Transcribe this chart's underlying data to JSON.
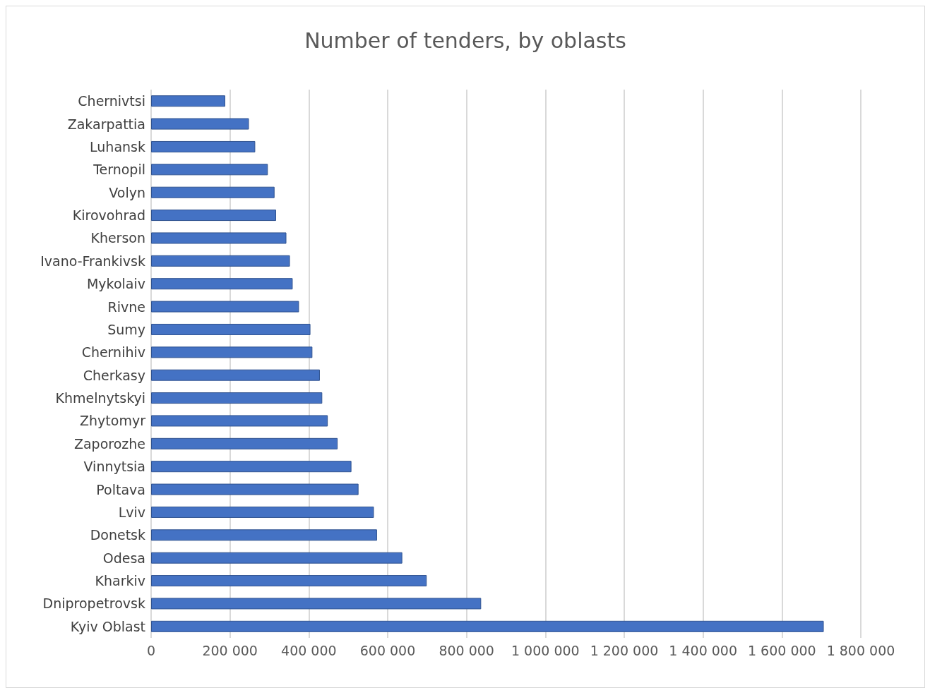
{
  "chart_data": {
    "type": "bar",
    "orientation": "horizontal",
    "title": "Number of tenders, by oblasts",
    "categories": [
      "Chernivtsi",
      "Zakarpattia",
      "Luhansk",
      "Ternopil",
      "Volyn",
      "Kirovohrad",
      "Kherson",
      "Ivano-Frankivsk",
      "Mykolaiv",
      "Rivne",
      "Sumy",
      "Chernihiv",
      "Cherkasy",
      "Khmelnytskyi",
      "Zhytomyr",
      "Zaporozhe",
      "Vinnytsia",
      "Poltava",
      "Lviv",
      "Donetsk",
      "Odesa",
      "Kharkiv",
      "Dnipropetrovsk",
      "Kyiv Oblast"
    ],
    "values": [
      188000,
      248000,
      264000,
      296000,
      313000,
      317000,
      343000,
      352000,
      359000,
      375000,
      404000,
      409000,
      428000,
      434000,
      448000,
      473000,
      508000,
      526000,
      565000,
      573000,
      637000,
      699000,
      837000,
      1706000
    ],
    "color": "#4472c4",
    "xlim": [
      0,
      1800000
    ],
    "xticks": [
      0,
      {
        "value": 200000,
        "label": "200 000"
      },
      {
        "value": 400000,
        "label": "400 000"
      },
      {
        "value": 600000,
        "label": "600 000"
      },
      {
        "value": 800000,
        "label": "800 000"
      },
      {
        "value": 1000000,
        "label": "1 000 000"
      },
      {
        "value": 1200000,
        "label": "1 200 000"
      },
      {
        "value": 1400000,
        "label": "1 400 000"
      },
      {
        "value": 1600000,
        "label": "1 600 000"
      },
      {
        "value": 1800000,
        "label": "1 800 000"
      }
    ],
    "grid": "x"
  }
}
